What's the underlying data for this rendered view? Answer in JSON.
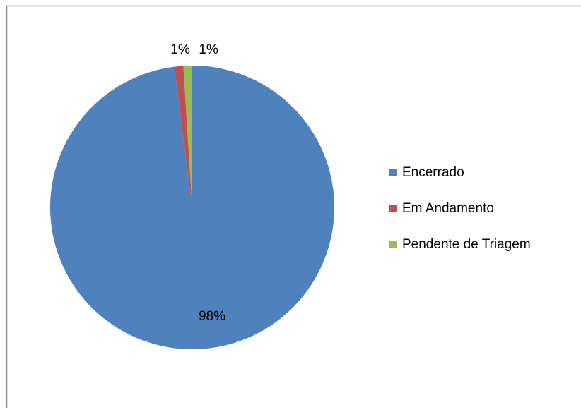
{
  "chart_data": {
    "type": "pie",
    "categories": [
      "Encerrado",
      "Em Andamento",
      "Pendente de Triagem"
    ],
    "values": [
      98,
      1,
      1
    ],
    "value_labels": [
      "98%",
      "1%",
      "1%"
    ],
    "colors": [
      "#4f81bd",
      "#c0504d",
      "#9bbb59"
    ],
    "legend": "right"
  }
}
